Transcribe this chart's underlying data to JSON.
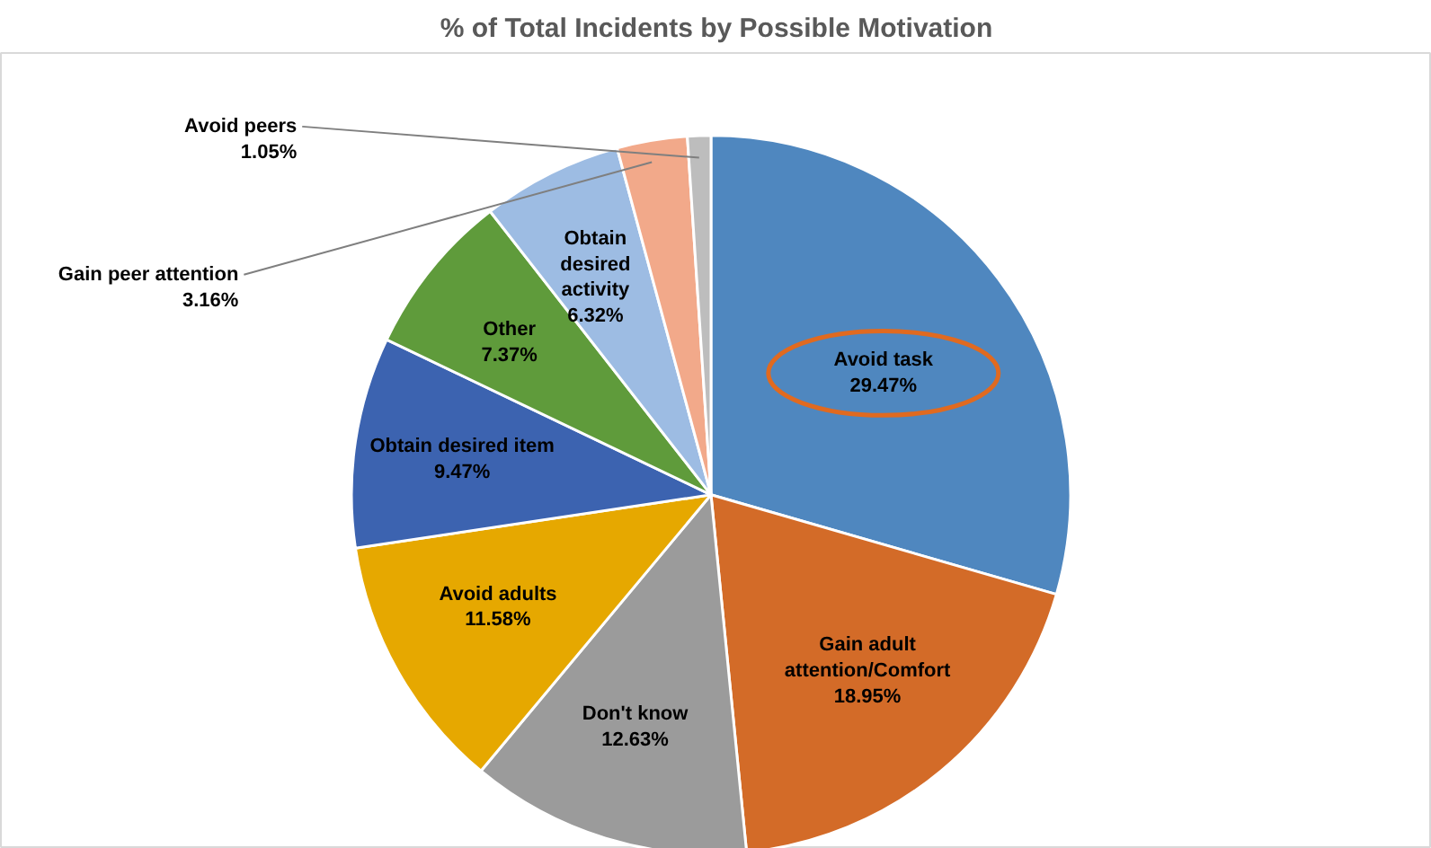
{
  "chart_data": {
    "type": "pie",
    "title": "% of Total Incidents by Possible Motivation",
    "categories": [
      "Avoid task",
      "Gain adult attention/Comfort",
      "Don't know",
      "Avoid adults",
      "Obtain desired item",
      "Other",
      "Obtain desired activity",
      "Gain peer attention",
      "Avoid peers"
    ],
    "values": [
      29.47,
      18.95,
      12.63,
      11.58,
      9.47,
      7.37,
      6.32,
      3.16,
      1.05
    ],
    "value_labels": [
      "29.47%",
      "18.95%",
      "12.63%",
      "11.58%",
      "9.47%",
      "7.37%",
      "6.32%",
      "3.16%",
      "1.05%"
    ],
    "colors": [
      "#4f87bf",
      "#d36b28",
      "#9b9b9b",
      "#e6a800",
      "#3c63b0",
      "#5f9b3b",
      "#9dbce3",
      "#f2a98a",
      "#bdbdbd"
    ]
  }
}
